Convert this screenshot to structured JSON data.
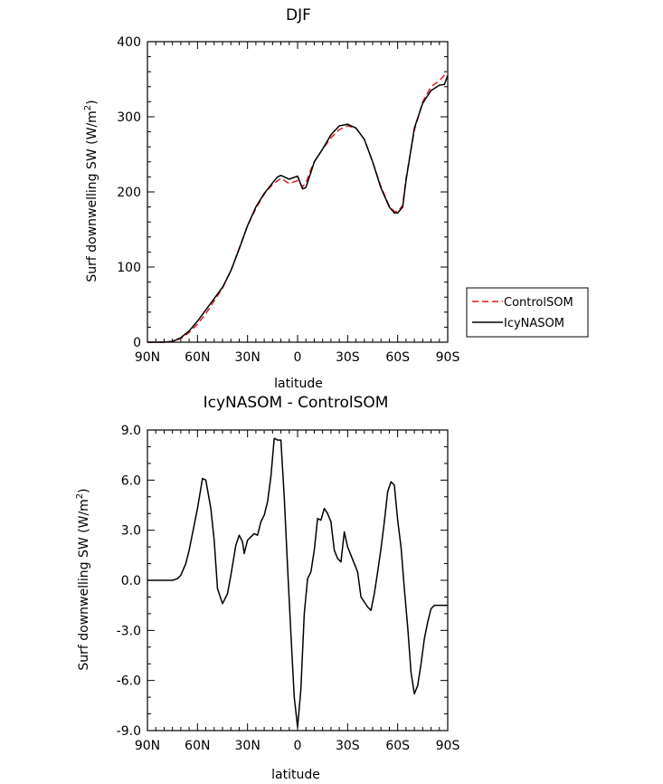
{
  "chart_data": [
    {
      "type": "line",
      "title": "DJF",
      "xlabel": "latitude",
      "ylabel": "Surf downwelling SW (W/m",
      "ylabel_sup": "2",
      "ylabel_close": ")",
      "xlim": [
        90,
        -90
      ],
      "ylim": [
        0,
        400
      ],
      "xticks": [
        {
          "value": 90,
          "label": "90N"
        },
        {
          "value": 60,
          "label": "60N"
        },
        {
          "value": 30,
          "label": "30N"
        },
        {
          "value": 0,
          "label": "0"
        },
        {
          "value": -30,
          "label": "30S"
        },
        {
          "value": -60,
          "label": "60S"
        },
        {
          "value": -90,
          "label": "90S"
        }
      ],
      "yticks": [
        {
          "value": 0,
          "label": "0"
        },
        {
          "value": 100,
          "label": "100"
        },
        {
          "value": 200,
          "label": "200"
        },
        {
          "value": 300,
          "label": "300"
        },
        {
          "value": 400,
          "label": "400"
        }
      ],
      "legend": {
        "placement": "outside-right"
      },
      "series": [
        {
          "name": "ControlSOM",
          "color": "#e0191b",
          "dash": "dashed",
          "x": [
            90,
            80,
            75,
            70,
            65,
            60,
            55,
            50,
            45,
            40,
            35,
            30,
            25,
            20,
            15,
            10,
            5,
            0,
            -3,
            -5,
            -8,
            -10,
            -15,
            -20,
            -25,
            -30,
            -35,
            -40,
            -45,
            -50,
            -55,
            -58,
            -60,
            -63,
            -65,
            -70,
            -75,
            -80,
            -85,
            -90
          ],
          "y": [
            0,
            0,
            1,
            5,
            13,
            24,
            38,
            55,
            72,
            95,
            125,
            155,
            178,
            197,
            210,
            218,
            211,
            215,
            207,
            212,
            230,
            240,
            257,
            272,
            283,
            288,
            285,
            270,
            240,
            207,
            181,
            174,
            174,
            182,
            218,
            282,
            320,
            340,
            348,
            360
          ]
        },
        {
          "name": "IcyNASOM",
          "color": "#000000",
          "dash": "solid",
          "x": [
            90,
            80,
            75,
            70,
            65,
            60,
            55,
            50,
            45,
            40,
            35,
            30,
            25,
            20,
            15,
            12,
            10,
            5,
            0,
            -3,
            -5,
            -8,
            -10,
            -15,
            -20,
            -25,
            -30,
            -35,
            -40,
            -45,
            -50,
            -55,
            -58,
            -60,
            -63,
            -65,
            -70,
            -75,
            -80,
            -85,
            -88,
            -90
          ],
          "y": [
            0,
            0,
            1,
            6,
            15,
            28,
            43,
            58,
            73,
            95,
            124,
            155,
            180,
            198,
            212,
            220,
            222,
            217,
            221,
            204,
            206,
            226,
            240,
            257,
            276,
            288,
            290,
            285,
            270,
            240,
            205,
            180,
            172,
            172,
            180,
            215,
            285,
            318,
            335,
            342,
            343,
            355
          ]
        }
      ]
    },
    {
      "type": "line",
      "title": "IcyNASOM - ControlSOM",
      "xlabel": "latitude",
      "ylabel": "Surf downwelling SW (W/m",
      "ylabel_sup": "2",
      "ylabel_close": ")",
      "xlim": [
        90,
        -90
      ],
      "ylim": [
        -9,
        9
      ],
      "xticks": [
        {
          "value": 90,
          "label": "90N"
        },
        {
          "value": 60,
          "label": "60N"
        },
        {
          "value": 30,
          "label": "30N"
        },
        {
          "value": 0,
          "label": "0"
        },
        {
          "value": -30,
          "label": "30S"
        },
        {
          "value": -60,
          "label": "60S"
        },
        {
          "value": -90,
          "label": "90S"
        }
      ],
      "yticks": [
        {
          "value": -9,
          "label": "-9.0"
        },
        {
          "value": -6,
          "label": "-6.0"
        },
        {
          "value": -3,
          "label": "-3.0"
        },
        {
          "value": 0,
          "label": "0.0"
        },
        {
          "value": 3,
          "label": "3.0"
        },
        {
          "value": 6,
          "label": "6.0"
        },
        {
          "value": 9,
          "label": "9.0"
        }
      ],
      "series": [
        {
          "color": "#000000",
          "dash": "solid",
          "x": [
            90,
            80,
            75,
            72,
            70,
            67,
            65,
            62,
            60,
            57,
            55,
            52,
            50,
            48,
            45,
            42,
            40,
            37,
            35,
            33,
            32,
            30,
            28,
            26,
            24,
            22,
            20,
            18,
            16,
            14,
            12,
            10,
            8,
            6,
            4,
            2,
            0,
            -2,
            -4,
            -6,
            -8,
            -10,
            -12,
            -14,
            -16,
            -18,
            -20,
            -22,
            -24,
            -26,
            -28,
            -30,
            -32,
            -34,
            -36,
            -38,
            -40,
            -42,
            -44,
            -46,
            -48,
            -50,
            -52,
            -54,
            -56,
            -58,
            -60,
            -62,
            -64,
            -66,
            -68,
            -70,
            -72,
            -74,
            -76,
            -78,
            -80,
            -82,
            -84,
            -86,
            -88,
            -90
          ],
          "y": [
            0,
            0,
            0,
            0.1,
            0.3,
            1.0,
            1.8,
            3.3,
            4.3,
            6.1,
            6.0,
            4.3,
            2.4,
            -0.5,
            -1.4,
            -0.8,
            0.3,
            2.1,
            2.7,
            2.3,
            1.6,
            2.4,
            2.6,
            2.8,
            2.7,
            3.5,
            3.9,
            4.7,
            6.2,
            8.5,
            8.4,
            8.4,
            5.0,
            0.8,
            -3.2,
            -7.0,
            -8.8,
            -6.5,
            -2.0,
            0.1,
            0.5,
            1.8,
            3.7,
            3.6,
            4.3,
            4.0,
            3.5,
            1.8,
            1.3,
            1.1,
            2.9,
            2.0,
            1.5,
            1.0,
            0.5,
            -1.0,
            -1.3,
            -1.6,
            -1.8,
            -0.8,
            0.5,
            1.9,
            3.5,
            5.3,
            5.9,
            5.7,
            3.6,
            2.0,
            -0.5,
            -2.8,
            -5.5,
            -6.8,
            -6.3,
            -5.0,
            -3.5,
            -2.5,
            -1.7,
            -1.5,
            -1.5,
            -1.5,
            -1.5,
            -1.5
          ]
        }
      ]
    }
  ]
}
